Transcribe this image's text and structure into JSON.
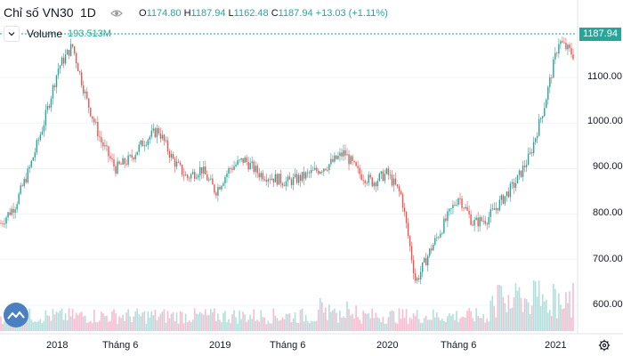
{
  "header": {
    "symbol": "Chỉ số VN30",
    "interval": "1D",
    "open_label": "O",
    "open": "1174.80",
    "high_label": "H",
    "high": "1187.94",
    "low_label": "L",
    "low": "1162.48",
    "close_label": "C",
    "close": "1187.94",
    "change": "+13.03 (+1.11%)"
  },
  "volume": {
    "label": "Volume",
    "value": "193.513M"
  },
  "last_price_tag": "1187.94",
  "colors": {
    "up": "#26a69a",
    "down": "#ef5350",
    "vol_up": "#b2dfdb",
    "vol_down": "#f8bbd0",
    "logo": "#4a7fc0"
  },
  "icons": {
    "visibility": "eye-icon",
    "collapse": "chevron-down-icon",
    "settings": "gear-icon",
    "logo": "tradingview-logo-icon"
  },
  "chart_data": {
    "type": "line",
    "x": [
      "2017-10",
      "2017-11",
      "2017-12",
      "2018-01",
      "2018-02",
      "2018-03",
      "2018-04",
      "2018-05",
      "2018-06",
      "2018-07",
      "2018-08",
      "2018-09",
      "2018-10",
      "2018-11",
      "2018-12",
      "2019-01",
      "2019-02",
      "2019-03",
      "2019-04",
      "2019-05",
      "2019-06",
      "2019-07",
      "2019-08",
      "2019-09",
      "2019-10",
      "2019-11",
      "2019-12",
      "2020-01",
      "2020-02",
      "2020-03",
      "2020-04",
      "2020-05",
      "2020-06",
      "2020-07",
      "2020-08",
      "2020-09",
      "2020-10",
      "2020-11",
      "2020-12",
      "2021-01",
      "2021-02"
    ],
    "series": [
      {
        "values": [
          780,
          820,
          900,
          1000,
          1120,
          1170,
          1050,
          960,
          900,
          920,
          960,
          985,
          920,
          880,
          900,
          850,
          900,
          920,
          890,
          880,
          870,
          880,
          895,
          910,
          935,
          890,
          870,
          890,
          840,
          650,
          720,
          780,
          840,
          780,
          790,
          830,
          870,
          930,
          1040,
          1180,
          1150
        ]
      }
    ],
    "y_axis": {
      "ticks": [
        "1100.00",
        "1000.00",
        "900.00",
        "800.00",
        "700.00",
        "600.00"
      ],
      "ylim": [
        560,
        1200
      ]
    },
    "x_axis": {
      "ticks": [
        "2018",
        "Tháng 6",
        "2019",
        "Tháng 6",
        "2020",
        "Tháng 6",
        "2021"
      ]
    },
    "grid": true
  }
}
